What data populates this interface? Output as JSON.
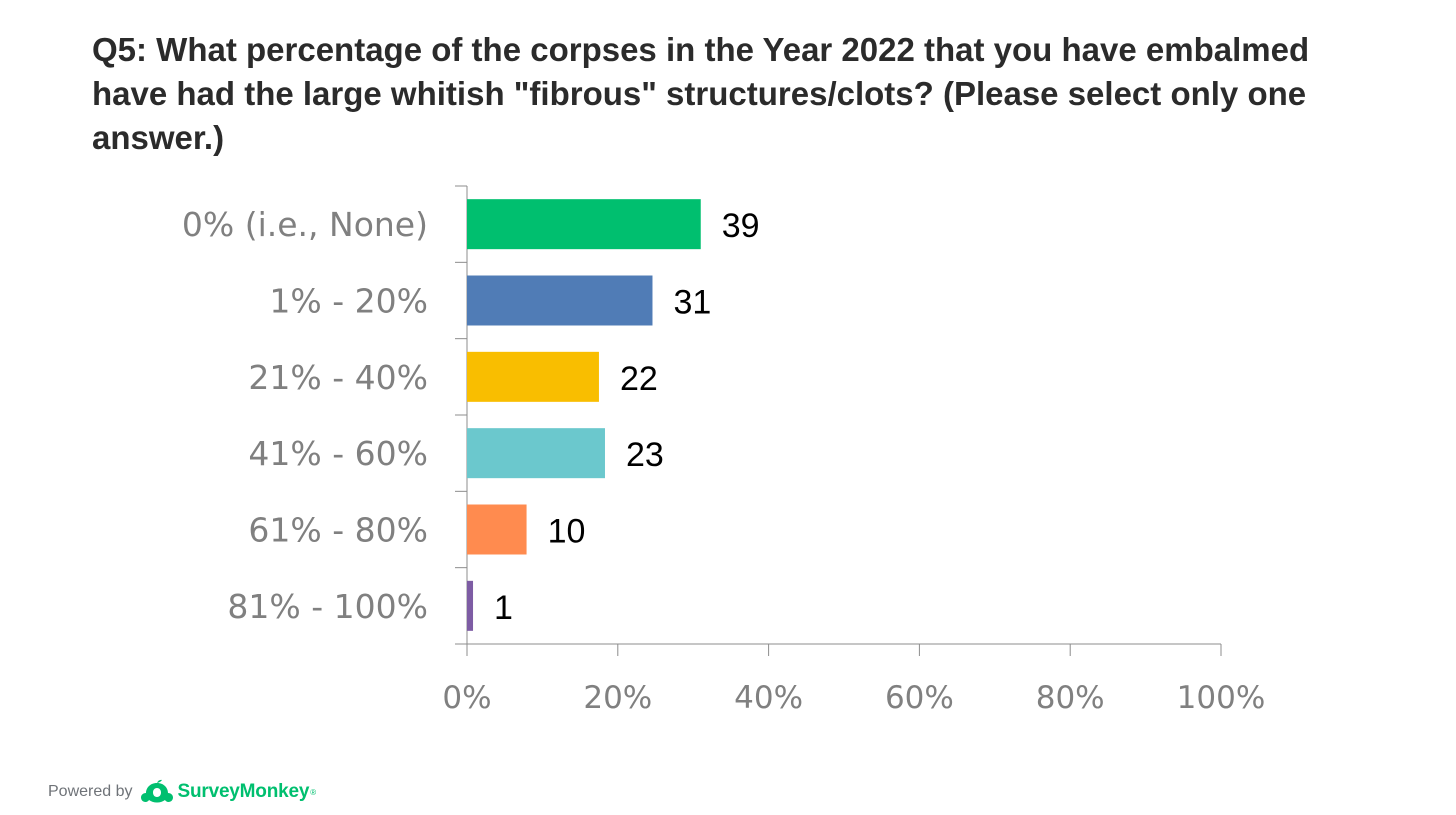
{
  "title": "Q5: What percentage of the corpses in the Year 2022 that you have embalmed have had the large whitish \"fibrous\" structures/clots? (Please select only one answer.)",
  "footer": {
    "powered_by": "Powered by",
    "brand": "SurveyMonkey",
    "trademark": "®",
    "brand_color": "#00bf6f"
  },
  "chart_data": {
    "type": "bar",
    "orientation": "horizontal",
    "title": "Q5: What percentage of the corpses in the Year 2022 that you have embalmed have had the large whitish \"fibrous\" structures/clots? (Please select only one answer.)",
    "categories": [
      "0% (i.e., None)",
      "1% - 20%",
      "21% - 40%",
      "41% - 60%",
      "61% - 80%",
      "81% - 100%"
    ],
    "counts": [
      39,
      31,
      22,
      23,
      10,
      1
    ],
    "values_percent": [
      31,
      24.6,
      17.5,
      18.3,
      7.9,
      0.8
    ],
    "colors": [
      "#00bf6f",
      "#507cb6",
      "#f9be00",
      "#6bc8cd",
      "#ff8b4f",
      "#7d5ca4"
    ],
    "data_labels": [
      "39",
      "31",
      "22",
      "23",
      "10",
      "1"
    ],
    "xlim": [
      0,
      100
    ],
    "x_ticks": [
      "0%",
      "20%",
      "40%",
      "60%",
      "80%",
      "100%"
    ],
    "xlabel": "",
    "ylabel": "",
    "grid": false,
    "legend": "none"
  }
}
